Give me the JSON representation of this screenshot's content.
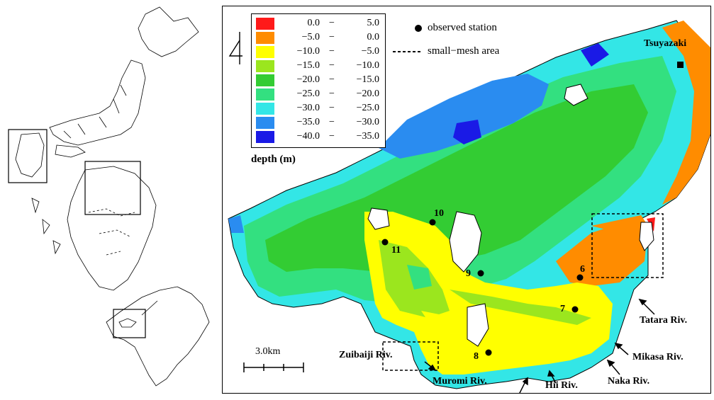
{
  "legend": {
    "rows": [
      {
        "lo": "0.0",
        "dash": "−",
        "hi": "5.0",
        "color": "#ff1a1a"
      },
      {
        "lo": "−5.0",
        "dash": "−",
        "hi": "0.0",
        "color": "#ff8c00"
      },
      {
        "lo": "−10.0",
        "dash": "−",
        "hi": "−5.0",
        "color": "#ffff00"
      },
      {
        "lo": "−15.0",
        "dash": "−",
        "hi": "−10.0",
        "color": "#9be61e"
      },
      {
        "lo": "−20.0",
        "dash": "−",
        "hi": "−15.0",
        "color": "#33cc33"
      },
      {
        "lo": "−25.0",
        "dash": "−",
        "hi": "−20.0",
        "color": "#33e080"
      },
      {
        "lo": "−30.0",
        "dash": "−",
        "hi": "−25.0",
        "color": "#33e6e6"
      },
      {
        "lo": "−35.0",
        "dash": "−",
        "hi": "−30.0",
        "color": "#2a8cf0"
      },
      {
        "lo": "−40.0",
        "dash": "−",
        "hi": "−35.0",
        "color": "#1a1ae6"
      }
    ],
    "unit": "depth (m)"
  },
  "key": {
    "station": "observed station",
    "mesh": "small−mesh area"
  },
  "places": {
    "tsuyazaki": "Tsuyazaki",
    "tatara": "Tatara Riv.",
    "mikasa": "Mikasa Riv.",
    "naka": "Naka Riv.",
    "hii": "Hii Riv.",
    "muromi": "Muromi Riv.",
    "zuibaiji": "Zuibaiji Riv."
  },
  "stations": [
    "6",
    "7",
    "8",
    "9",
    "10",
    "11"
  ],
  "scale_label": "3.0km",
  "north_glyph": "4"
}
